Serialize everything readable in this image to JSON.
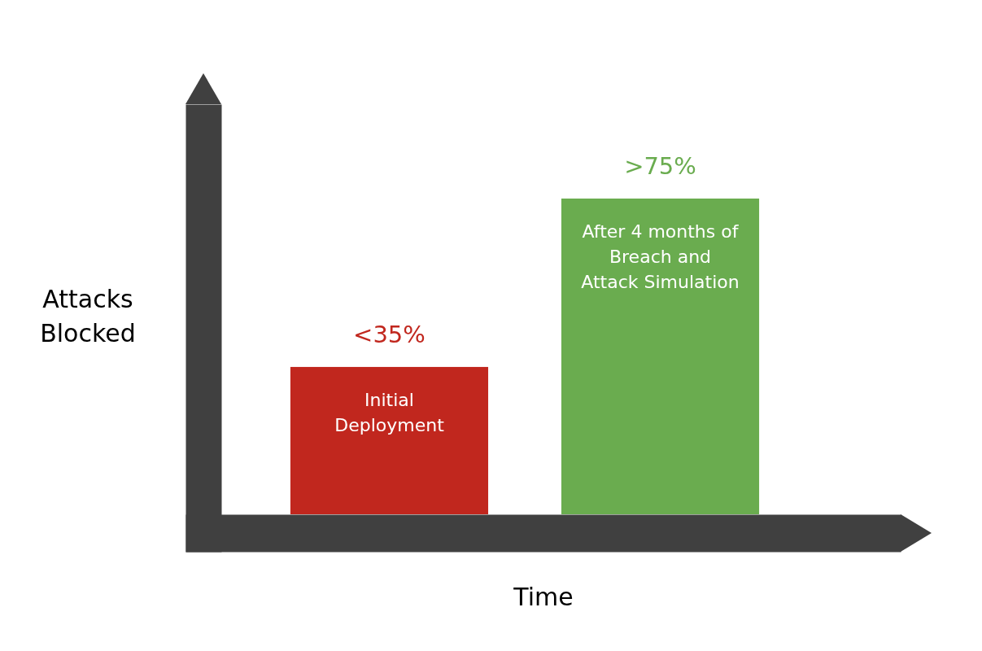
{
  "chart_data": {
    "type": "bar",
    "xlabel": "Time",
    "ylabel": "Attacks Blocked",
    "categories": [
      "Initial Deployment",
      "After 4 months of Breach and Attack Simulation"
    ],
    "values": [
      35,
      75
    ],
    "colors": [
      "#c1271e",
      "#6aac4f"
    ],
    "value_labels": [
      "<35%",
      ">75%"
    ]
  }
}
